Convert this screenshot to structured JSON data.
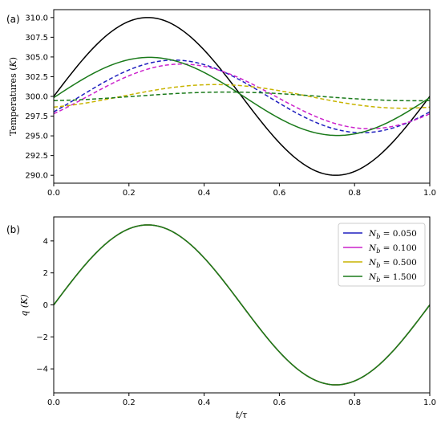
{
  "panels": [
    {
      "panel_label": "(a)",
      "chart_data": {
        "type": "line",
        "title": "",
        "xlabel": "",
        "ylabel": "Temperatures (K)",
        "xlim": [
          0.0,
          1.0
        ],
        "ylim": [
          289.0,
          311.0
        ],
        "xticks": [
          "0.0",
          "0.2",
          "0.4",
          "0.6",
          "0.8",
          "1.0"
        ],
        "yticks": [
          "290.0",
          "292.5",
          "295.0",
          "297.5",
          "300.0",
          "302.5",
          "305.0",
          "307.5",
          "310.0"
        ],
        "grid": false,
        "series": [
          {
            "color": "#000000",
            "style": "solid",
            "mean": 300.0,
            "amplitude": 10.0,
            "phase_shift": 0.0
          },
          {
            "color": "#1f1fbf",
            "style": "dashed",
            "mean": 300.0,
            "amplitude": 4.6,
            "phase_shift": 0.07
          },
          {
            "color": "#cc22cc",
            "style": "dashed",
            "mean": 300.0,
            "amplitude": 4.1,
            "phase_shift": 0.09
          },
          {
            "color": "#c8b400",
            "style": "dashed",
            "mean": 300.0,
            "amplitude": 1.5,
            "phase_shift": 0.18
          },
          {
            "color": "#1a7a1a",
            "style": "dashed",
            "mean": 300.0,
            "amplitude": 0.55,
            "phase_shift": 0.21
          },
          {
            "color": "#1a7a1a",
            "style": "solid",
            "mean": 300.0,
            "amplitude": 4.95,
            "phase_shift": 0.005
          }
        ]
      }
    },
    {
      "panel_label": "(b)",
      "chart_data": {
        "type": "line",
        "title": "",
        "xlabel": "t/τ",
        "ylabel": "q (K)",
        "xlim": [
          0.0,
          1.0
        ],
        "ylim": [
          -5.5,
          5.5
        ],
        "xticks": [
          "0.0",
          "0.2",
          "0.4",
          "0.6",
          "0.8",
          "1.0"
        ],
        "yticks": [
          "−4",
          "−2",
          "0",
          "2",
          "4"
        ],
        "grid": false,
        "legend_position": "top-right",
        "series": [
          {
            "name": "N_b = 0.050",
            "name_main": "N",
            "name_sub": "b",
            "name_value": " = 0.050",
            "color": "#1f1fbf",
            "mean": 0.0,
            "amplitude": 5.0,
            "phase_shift": 0.0
          },
          {
            "name": "N_b = 0.100",
            "name_main": "N",
            "name_sub": "b",
            "name_value": " = 0.100",
            "color": "#cc22cc",
            "mean": 0.0,
            "amplitude": 5.0,
            "phase_shift": 0.0
          },
          {
            "name": "N_b = 0.500",
            "name_main": "N",
            "name_sub": "b",
            "name_value": " = 0.500",
            "color": "#c8b400",
            "mean": 0.0,
            "amplitude": 5.0,
            "phase_shift": 0.0
          },
          {
            "name": "N_b = 1.500",
            "name_main": "N",
            "name_sub": "b",
            "name_value": " = 1.500",
            "color": "#1a7a1a",
            "mean": 0.0,
            "amplitude": 5.0,
            "phase_shift": 0.0
          }
        ]
      }
    }
  ]
}
